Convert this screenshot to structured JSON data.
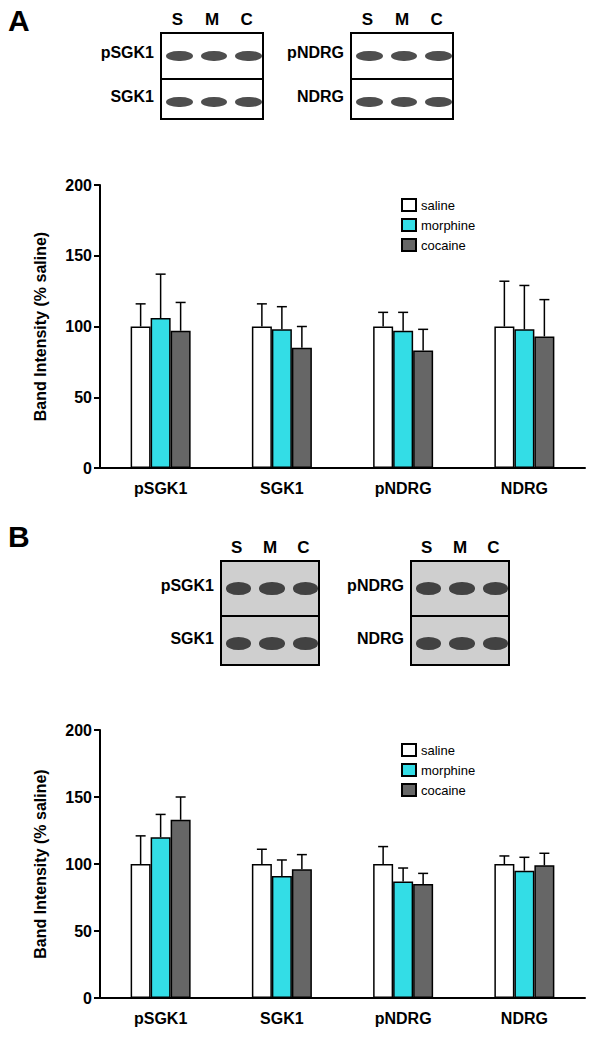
{
  "chart_data": [
    {
      "type": "bar",
      "panel_label": "A",
      "y_label": "Band Intensity (% saline)",
      "categories": [
        "pSGK1",
        "SGK1",
        "pNDRG",
        "NDRG"
      ],
      "series": [
        {
          "name": "saline",
          "color": "#ffffff",
          "values": [
            100,
            100,
            100,
            100
          ],
          "errors": [
            16,
            16,
            10,
            32
          ]
        },
        {
          "name": "morphine",
          "color": "#33dde6",
          "values": [
            106,
            98,
            97,
            98
          ],
          "errors": [
            31,
            16,
            13,
            31
          ]
        },
        {
          "name": "cocaine",
          "color": "#666666",
          "values": [
            97,
            85,
            83,
            93
          ],
          "errors": [
            20,
            15,
            15,
            26
          ]
        }
      ],
      "ylim": [
        0,
        200
      ],
      "yticks": [
        0,
        50,
        100,
        150,
        200
      ],
      "grid": false,
      "legend": "upper right",
      "blots": {
        "lanes": [
          "S",
          "M",
          "C"
        ],
        "panels": [
          {
            "rows": [
              "pSGK1",
              "SGK1"
            ]
          },
          {
            "rows": [
              "pNDRG",
              "NDRG"
            ]
          }
        ]
      }
    },
    {
      "type": "bar",
      "panel_label": "B",
      "y_label": "Band Intensity (% saline)",
      "categories": [
        "pSGK1",
        "SGK1",
        "pNDRG",
        "NDRG"
      ],
      "series": [
        {
          "name": "saline",
          "color": "#ffffff",
          "values": [
            100,
            100,
            100,
            100
          ],
          "errors": [
            21,
            11,
            13,
            6
          ]
        },
        {
          "name": "morphine",
          "color": "#33dde6",
          "values": [
            120,
            91,
            87,
            95
          ],
          "errors": [
            17,
            12,
            10,
            10
          ]
        },
        {
          "name": "cocaine",
          "color": "#666666",
          "values": [
            133,
            96,
            85,
            99
          ],
          "errors": [
            17,
            11,
            8,
            9
          ]
        }
      ],
      "ylim": [
        0,
        200
      ],
      "yticks": [
        0,
        50,
        100,
        150,
        200
      ],
      "grid": false,
      "legend": "upper right",
      "blots": {
        "lanes": [
          "S",
          "M",
          "C"
        ],
        "panels": [
          {
            "rows": [
              "pSGK1",
              "SGK1"
            ]
          },
          {
            "rows": [
              "pNDRG",
              "NDRG"
            ]
          }
        ]
      }
    }
  ]
}
